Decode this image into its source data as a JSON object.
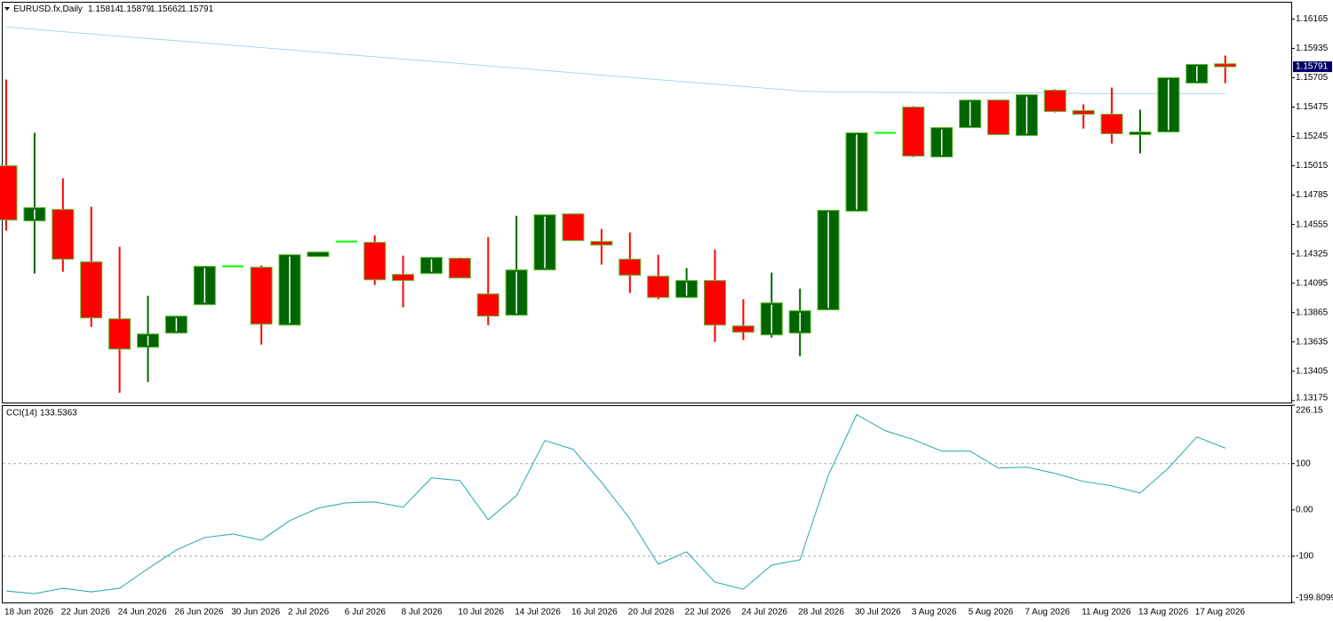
{
  "chart_data": [
    {
      "type": "candlestick",
      "title": "EURUSD.fx,Daily",
      "header_values": [
        1.15814,
        1.15879,
        1.15662,
        1.15791
      ],
      "categories": [
        "18 Jun 2026",
        null,
        "22 Jun 2026",
        null,
        "24 Jun 2026",
        null,
        "26 Jun 2026",
        null,
        "30 Jun 2026",
        null,
        "2 Jul 2026",
        null,
        "6 Jul 2026",
        null,
        "8 Jul 2026",
        null,
        "10 Jul 2026",
        null,
        "14 Jul 2026",
        null,
        "16 Jul 2026",
        null,
        "20 Jul 2026",
        null,
        "22 Jul 2026",
        null,
        "24 Jul 2026",
        null,
        "28 Jul 2026",
        null,
        "30 Jul 2026",
        null,
        "3 Aug 2026",
        null,
        "5 Aug 2026",
        null,
        "7 Aug 2026",
        null,
        "11 Aug 2026",
        null,
        "13 Aug 2026",
        null,
        "17 Aug 2026",
        null
      ],
      "open": [
        1.15015,
        1.14583,
        1.14673,
        1.14262,
        1.13816,
        1.13593,
        1.13704,
        1.13927,
        1.14227,
        1.1422,
        1.13767,
        1.14304,
        1.14422,
        1.14415,
        1.14164,
        1.14171,
        1.1429,
        1.14011,
        1.13844,
        1.14199,
        1.14638,
        1.14422,
        1.14283,
        1.1415,
        1.13983,
        1.14116,
        1.1376,
        1.1369,
        1.13704,
        1.13886,
        1.14659,
        1.15273,
        1.15475,
        1.15084,
        1.15314,
        1.1553,
        1.15252,
        1.15607,
        1.15447,
        1.15419,
        1.15259,
        1.1528,
        1.15663,
        1.15814
      ],
      "high": [
        1.15691,
        1.15273,
        1.14917,
        1.14694,
        1.1438,
        1.13997,
        1.13837,
        1.14227,
        1.14227,
        1.14234,
        1.14318,
        1.14339,
        1.14422,
        1.14471,
        1.14311,
        1.14297,
        1.14297,
        1.14457,
        1.14624,
        1.14631,
        1.14638,
        1.1452,
        1.14492,
        1.14318,
        1.14213,
        1.14359,
        1.13969,
        1.14178,
        1.14053,
        1.14666,
        1.15273,
        1.15273,
        1.15482,
        1.15314,
        1.1553,
        1.1553,
        1.15572,
        1.15614,
        1.15496,
        1.15628,
        1.15454,
        1.15705,
        1.15809,
        1.15879
      ],
      "low": [
        1.14506,
        1.14171,
        1.14185,
        1.13753,
        1.13237,
        1.13321,
        1.13704,
        1.13927,
        1.14227,
        1.13614,
        1.13767,
        1.14304,
        1.14422,
        1.14081,
        1.13906,
        1.14171,
        1.14136,
        1.13767,
        1.13844,
        1.14199,
        1.14429,
        1.14241,
        1.14018,
        1.13969,
        1.13983,
        1.13635,
        1.13649,
        1.13669,
        1.13523,
        1.13886,
        1.14659,
        1.15273,
        1.15084,
        1.15084,
        1.15314,
        1.15259,
        1.15252,
        1.15433,
        1.15307,
        1.15189,
        1.15112,
        1.1528,
        1.15663,
        1.15662
      ],
      "close": [
        1.1459,
        1.14687,
        1.14283,
        1.13823,
        1.13579,
        1.13697,
        1.13837,
        1.14227,
        1.14227,
        1.13774,
        1.14318,
        1.14339,
        1.14422,
        1.14122,
        1.14116,
        1.14297,
        1.14136,
        1.13837,
        1.14199,
        1.14631,
        1.14429,
        1.14394,
        1.14157,
        1.13983,
        1.14116,
        1.13767,
        1.13711,
        1.13941,
        1.13879,
        1.14666,
        1.15273,
        1.15273,
        1.15091,
        1.15314,
        1.1553,
        1.15259,
        1.15572,
        1.1544,
        1.15419,
        1.15266,
        1.1528,
        1.15705,
        1.15809,
        1.15791
      ],
      "ma_values": [
        1.16102,
        1.16084,
        1.16066,
        1.16048,
        1.1603,
        1.16012,
        1.15995,
        1.15977,
        1.15959,
        1.15941,
        1.15923,
        1.15905,
        1.15887,
        1.15869,
        1.15851,
        1.15834,
        1.15816,
        1.15798,
        1.1578,
        1.15762,
        1.15744,
        1.15726,
        1.15708,
        1.1569,
        1.15672,
        1.15654,
        1.15637,
        1.15619,
        1.15601,
        1.15594,
        1.15594,
        1.1559,
        1.1559,
        1.15587,
        1.15587,
        1.15587,
        1.15587,
        1.15587,
        1.1558,
        1.1558,
        1.1558,
        1.1558,
        1.1558,
        1.1558
      ],
      "ma_color": "#a9d6e5",
      "current_price": 1.15791,
      "up_color": "#006400",
      "down_color": "#ff0000",
      "border_color": "#5cbf2a",
      "doji_color": "#00ff00",
      "ylim": [
        1.1316,
        1.163
      ],
      "yticks": [
        1.16165,
        1.15935,
        1.15705,
        1.15475,
        1.15245,
        1.15015,
        1.14785,
        1.14555,
        1.14325,
        1.14095,
        1.13865,
        1.13635,
        1.13405,
        1.13175
      ]
    },
    {
      "type": "line",
      "title": "CCI(14)",
      "last_value": 133.5363,
      "values": [
        -175.0,
        -180.8,
        -169.2,
        -176.9,
        -169.2,
        -126.9,
        -86.5,
        -59.6,
        -51.9,
        -65.4,
        -23.1,
        3.8,
        15.4,
        17.3,
        5.8,
        69.2,
        63.5,
        -21.2,
        30.8,
        150.0,
        130.8,
        59.6,
        -19.2,
        -117.3,
        -90.4,
        -155.8,
        -171.2,
        -119.2,
        -107.7,
        75.0,
        205.8,
        171.2,
        151.9,
        126.9,
        126.9,
        90.4,
        92.3,
        78.8,
        61.5,
        51.9,
        36.5,
        90.4,
        157.7,
        133.5363
      ],
      "color": "#20a8a8",
      "ylim": [
        -199.8099,
        226.15
      ],
      "yticks": [
        226.15,
        100,
        {
          "value": 0,
          "label": "0.00"
        },
        -100,
        -199.8099
      ],
      "levels": [
        100,
        -100
      ]
    }
  ]
}
